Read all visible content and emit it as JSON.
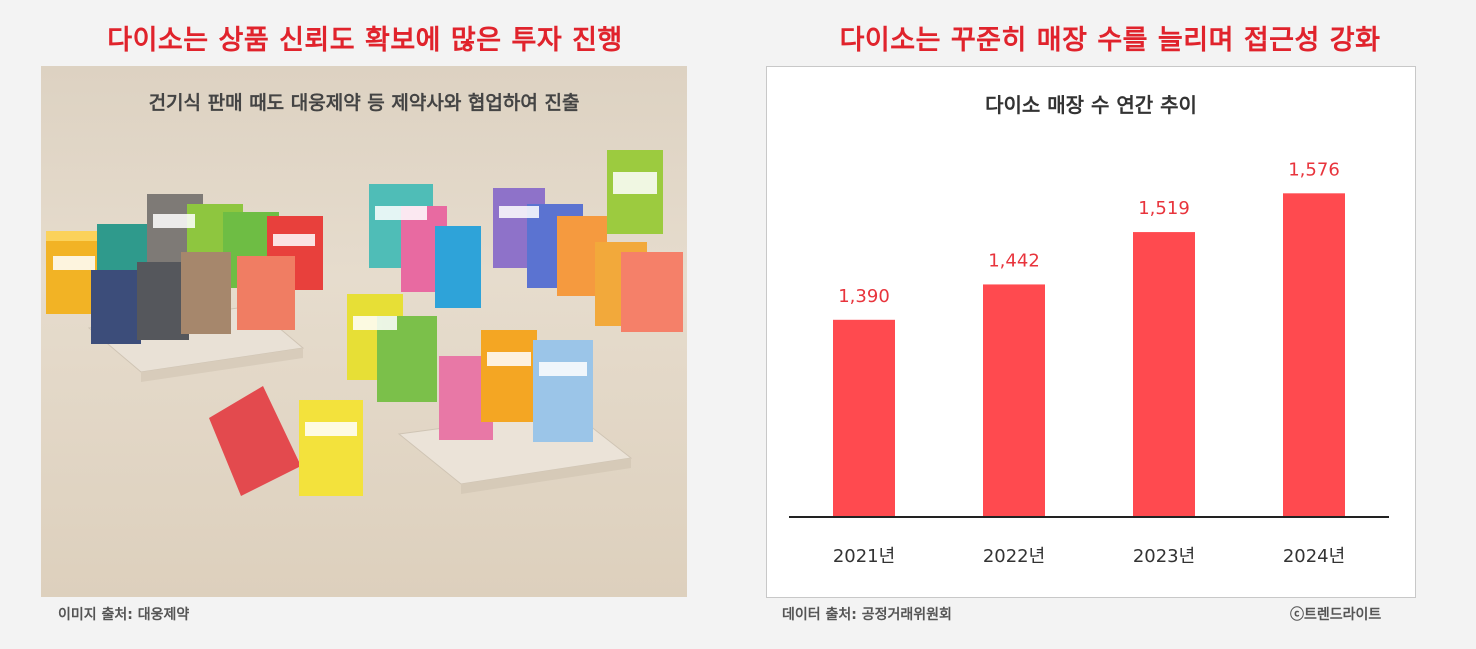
{
  "left": {
    "headline": "다이소는 상품 신뢰도 확보에 많은 투자 진행",
    "photo_caption": "건기식 판매 때도 대웅제약 등 제약사와 협업하여 진출",
    "source": "이미지 출처: 대웅제약",
    "photo_alt": "대웅제약 건강기능식품 제품 패키지 사진"
  },
  "right": {
    "headline": "다이소는 꾸준히 매장 수를 늘리며 접근성 강화",
    "source": "데이터 출처: 공정거래위원회",
    "copyright": "ⓒ트렌드라이트"
  },
  "chart_data": {
    "type": "bar",
    "title": "다이소 매장 수 연간 추이",
    "categories": [
      "2021년",
      "2022년",
      "2023년",
      "2024년"
    ],
    "values": [
      1390,
      1442,
      1519,
      1576
    ],
    "value_labels": [
      "1,390",
      "1,442",
      "1,519",
      "1,576"
    ],
    "xlabel": "",
    "ylabel": "",
    "ylim": [
      1100,
      1600
    ],
    "grid": false,
    "bar_color": "#ff4a4f",
    "label_color": "#e8343c"
  },
  "colors": {
    "headline": "#e0232c",
    "accent": "#ff4a4f"
  }
}
